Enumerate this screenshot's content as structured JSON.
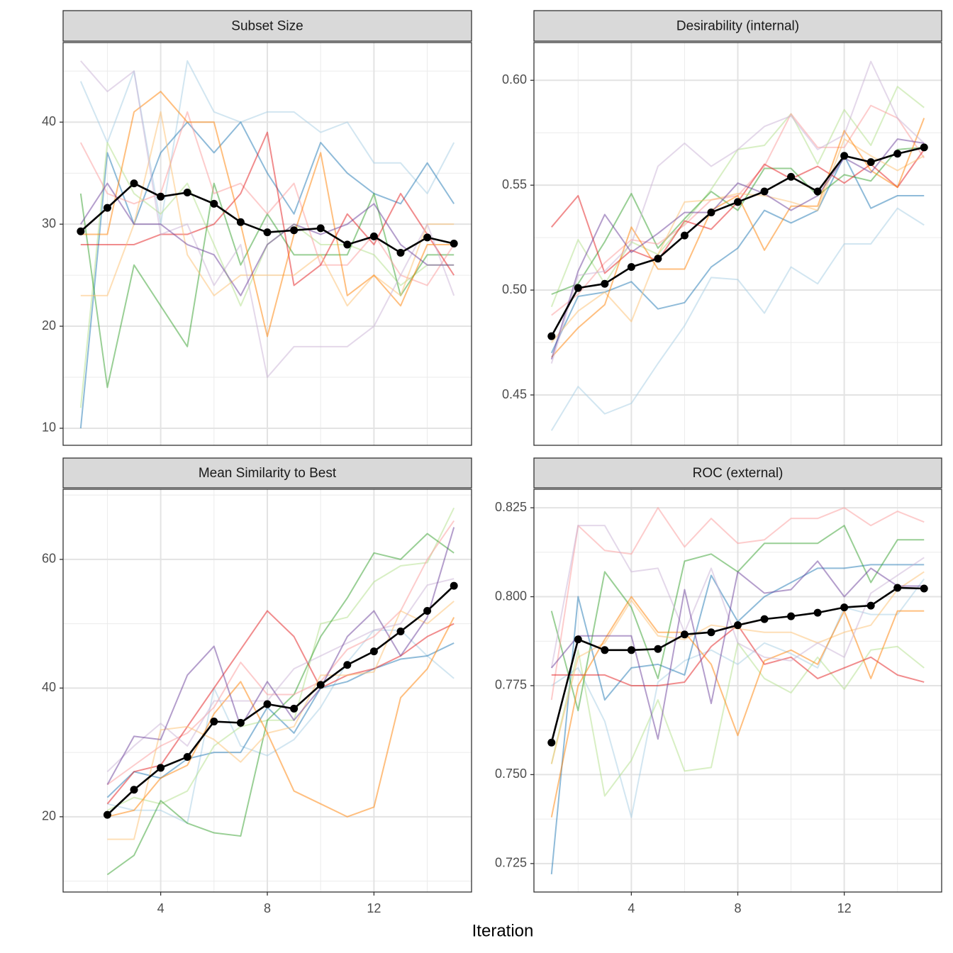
{
  "x_label": "Iteration",
  "chart_data": [
    {
      "type": "line",
      "title": "Subset Size",
      "x": [
        1,
        2,
        3,
        4,
        5,
        6,
        7,
        8,
        9,
        10,
        11,
        12,
        13,
        14,
        15
      ],
      "xlim": [
        0.34,
        15.66
      ],
      "xticks": [
        4,
        8,
        12
      ],
      "x_minor_ticks": [
        2,
        6,
        10,
        14
      ],
      "ylim": [
        8.33,
        47.8
      ],
      "yticks": [
        10,
        20,
        30,
        40
      ],
      "y_minor_ticks": [
        15,
        25,
        35,
        45
      ],
      "grid": true,
      "series": [
        {
          "color": "#A6CEE380",
          "values": [
            44,
            38,
            45,
            30,
            46,
            41,
            40,
            41,
            41,
            39,
            40,
            36,
            36,
            33,
            38
          ]
        },
        {
          "color": "#1F78B480",
          "values": [
            10,
            37,
            30,
            37,
            40,
            37,
            40,
            35,
            31,
            38,
            35,
            33,
            32,
            36,
            32
          ]
        },
        {
          "color": "#B2DF8A80",
          "values": [
            12,
            38,
            33,
            31,
            34,
            28,
            22,
            28,
            30,
            28,
            28,
            27,
            24,
            26,
            26
          ]
        },
        {
          "color": "#33A02C80",
          "values": [
            33,
            14,
            26,
            22,
            18,
            34,
            26,
            31,
            27,
            27,
            27,
            33,
            23,
            27,
            27
          ]
        },
        {
          "color": "#FB9A9980",
          "values": [
            38,
            33,
            32,
            33,
            41,
            33,
            34,
            31,
            34,
            26,
            26,
            29,
            25,
            24,
            28
          ]
        },
        {
          "color": "#E31A1C80",
          "values": [
            28,
            28,
            28,
            29,
            29,
            30,
            33,
            39,
            24,
            26,
            31,
            28,
            33,
            29,
            25
          ]
        },
        {
          "color": "#FDBF6F80",
          "values": [
            23,
            23,
            30,
            41,
            27,
            23,
            25,
            25,
            25,
            27,
            22,
            25,
            23,
            30,
            30
          ]
        },
        {
          "color": "#FF7F0080",
          "values": [
            29,
            29,
            41,
            43,
            40,
            40,
            30,
            19,
            29,
            37,
            23,
            25,
            22,
            28,
            28
          ]
        },
        {
          "color": "#CAB2D680",
          "values": [
            46,
            43,
            45,
            29,
            30,
            24,
            28,
            15,
            18,
            18,
            18,
            20,
            25,
            30,
            23
          ]
        },
        {
          "color": "#6A3D9A80",
          "values": [
            30,
            34,
            30,
            30,
            28,
            27,
            23,
            28,
            30,
            29,
            30,
            32,
            28,
            26,
            26
          ]
        },
        {
          "color": "#000000",
          "markers": true,
          "values": [
            29.3,
            31.6,
            34,
            32.7,
            33.1,
            32,
            30.2,
            29.2,
            29.4,
            29.6,
            28,
            28.8,
            27.2,
            28.7,
            28.1
          ]
        }
      ]
    },
    {
      "type": "line",
      "title": "Desirability (internal)",
      "x": [
        1,
        2,
        3,
        4,
        5,
        6,
        7,
        8,
        9,
        10,
        11,
        12,
        13,
        14,
        15
      ],
      "xlim": [
        0.34,
        15.66
      ],
      "xticks": [
        4,
        8,
        12
      ],
      "x_minor_ticks": [
        2,
        6,
        10,
        14
      ],
      "ylim": [
        0.426,
        0.618
      ],
      "yticks": [
        0.45,
        {
          "value": 0.5,
          "label": "0.50"
        },
        0.55,
        {
          "value": 0.6,
          "label": "0.60"
        }
      ],
      "y_minor_ticks": [
        0.475,
        0.525,
        0.575
      ],
      "grid": true,
      "series": [
        {
          "color": "#A6CEE380",
          "values": [
            0.433,
            0.454,
            0.441,
            0.446,
            0.465,
            0.483,
            0.506,
            0.505,
            0.489,
            0.511,
            0.503,
            0.522,
            0.522,
            0.539,
            0.531
          ]
        },
        {
          "color": "#1F78B480",
          "values": [
            0.47,
            0.497,
            0.499,
            0.504,
            0.491,
            0.494,
            0.511,
            0.52,
            0.538,
            0.532,
            0.538,
            0.564,
            0.539,
            0.545,
            0.545
          ]
        },
        {
          "color": "#B2DF8A80",
          "values": [
            0.492,
            0.524,
            0.503,
            0.523,
            0.517,
            0.532,
            0.548,
            0.567,
            0.569,
            0.584,
            0.56,
            0.586,
            0.569,
            0.597,
            0.587
          ]
        },
        {
          "color": "#33A02C80",
          "values": [
            0.498,
            0.503,
            0.523,
            0.546,
            0.52,
            0.534,
            0.547,
            0.538,
            0.558,
            0.558,
            0.545,
            0.555,
            0.552,
            0.567,
            0.568
          ]
        },
        {
          "color": "#FB9A9980",
          "values": [
            0.488,
            0.498,
            0.513,
            0.524,
            0.522,
            0.531,
            0.543,
            0.545,
            0.559,
            0.584,
            0.568,
            0.568,
            0.588,
            0.582,
            0.563
          ]
        },
        {
          "color": "#E31A1C80",
          "values": [
            0.53,
            0.545,
            0.508,
            0.519,
            0.514,
            0.533,
            0.529,
            0.542,
            0.56,
            0.553,
            0.559,
            0.551,
            0.56,
            0.549,
            0.567
          ]
        },
        {
          "color": "#FDBF6F80",
          "values": [
            0.475,
            0.49,
            0.499,
            0.485,
            0.517,
            0.542,
            0.543,
            0.546,
            0.545,
            0.542,
            0.538,
            0.572,
            0.564,
            0.557,
            0.564
          ]
        },
        {
          "color": "#FF7F0080",
          "values": [
            0.468,
            0.482,
            0.493,
            0.53,
            0.51,
            0.51,
            0.538,
            0.545,
            0.519,
            0.54,
            0.54,
            0.576,
            0.557,
            0.549,
            0.582
          ]
        },
        {
          "color": "#CAB2D680",
          "values": [
            0.465,
            0.507,
            0.509,
            0.522,
            0.559,
            0.57,
            0.559,
            0.567,
            0.578,
            0.583,
            0.567,
            0.574,
            0.609,
            0.582,
            0.57
          ]
        },
        {
          "color": "#6A3D9A80",
          "values": [
            0.467,
            0.509,
            0.536,
            0.518,
            0.527,
            0.537,
            0.537,
            0.551,
            0.546,
            0.538,
            0.545,
            0.563,
            0.556,
            0.572,
            0.57
          ]
        },
        {
          "color": "#000000",
          "markers": true,
          "values": [
            0.478,
            0.501,
            0.503,
            0.511,
            0.515,
            0.526,
            0.537,
            0.542,
            0.547,
            0.554,
            0.547,
            0.564,
            0.561,
            0.565,
            0.568
          ]
        }
      ]
    },
    {
      "type": "line",
      "title": "Mean Similarity to Best",
      "x": [
        1,
        2,
        3,
        4,
        5,
        6,
        7,
        8,
        9,
        10,
        11,
        12,
        13,
        14,
        15
      ],
      "xlim": [
        0.34,
        15.66
      ],
      "xticks": [
        4,
        8,
        12
      ],
      "x_minor_ticks": [
        2,
        6,
        10,
        14
      ],
      "ylim": [
        8.3,
        70.9
      ],
      "yticks": [
        20,
        40,
        60
      ],
      "y_minor_ticks": [
        10,
        30,
        50,
        70
      ],
      "grid": true,
      "series": [
        {
          "color": "#A6CEE380",
          "values": [
            null,
            22,
            21,
            21,
            19,
            40,
            31,
            29.5,
            32,
            37,
            44,
            49,
            49,
            45,
            41.5
          ]
        },
        {
          "color": "#1F78B480",
          "values": [
            null,
            23,
            27,
            26,
            29,
            30,
            30,
            37,
            33,
            40,
            41,
            43,
            44.5,
            45,
            47
          ]
        },
        {
          "color": "#B2DF8A80",
          "values": [
            null,
            21,
            23,
            22,
            24,
            31,
            34,
            35,
            35,
            50,
            51,
            56.5,
            59,
            59.5,
            68
          ]
        },
        {
          "color": "#33A02C80",
          "values": [
            null,
            11,
            14,
            22.5,
            19,
            17.5,
            17,
            35,
            39,
            48,
            54,
            61,
            60,
            64,
            61
          ]
        },
        {
          "color": "#FB9A9980",
          "values": [
            null,
            25,
            28,
            31,
            33,
            37,
            44,
            39,
            39,
            41,
            46,
            48,
            52,
            60,
            66
          ]
        },
        {
          "color": "#E31A1C80",
          "values": [
            null,
            22,
            27,
            28,
            34,
            40,
            46,
            52,
            48,
            40,
            42,
            43,
            45,
            48,
            50
          ]
        },
        {
          "color": "#FDBF6F80",
          "values": [
            null,
            16.5,
            16.5,
            33.5,
            34,
            32,
            28.5,
            33,
            34,
            42,
            42,
            42.5,
            52,
            50,
            53.5
          ]
        },
        {
          "color": "#FF7F0080",
          "values": [
            null,
            20,
            21,
            26,
            28,
            36,
            41,
            33,
            24,
            22,
            20,
            21.5,
            38.5,
            43,
            51
          ]
        },
        {
          "color": "#CAB2D680",
          "values": [
            null,
            27,
            31,
            34.5,
            31,
            38,
            38,
            38,
            43,
            45,
            47,
            49,
            50,
            56,
            57
          ]
        },
        {
          "color": "#6A3D9A80",
          "values": [
            null,
            25,
            32.5,
            32,
            42,
            46.5,
            34,
            41,
            35,
            40,
            48,
            52,
            45,
            51,
            65
          ]
        },
        {
          "color": "#000000",
          "markers": true,
          "values": [
            null,
            20.3,
            24.2,
            27.6,
            29.3,
            34.8,
            34.6,
            37.5,
            36.8,
            40.5,
            43.6,
            45.7,
            48.8,
            52,
            55.9
          ]
        }
      ]
    },
    {
      "type": "line",
      "title": "ROC (external)",
      "x": [
        1,
        2,
        3,
        4,
        5,
        6,
        7,
        8,
        9,
        10,
        11,
        12,
        13,
        14,
        15
      ],
      "xlim": [
        0.34,
        15.66
      ],
      "xticks": [
        4,
        8,
        12
      ],
      "x_minor_ticks": [
        2,
        6,
        10,
        14
      ],
      "ylim": [
        0.717,
        0.8302
      ],
      "yticks": [
        0.725,
        {
          "value": 0.75,
          "label": "0.750"
        },
        0.775,
        {
          "value": 0.8,
          "label": "0.800"
        },
        0.825
      ],
      "y_minor_ticks": [
        0.7375,
        0.7625,
        0.7875,
        0.8125
      ],
      "grid": true,
      "series": [
        {
          "color": "#A6CEE380",
          "values": [
            0.775,
            0.78,
            0.765,
            0.738,
            0.776,
            0.782,
            0.785,
            0.781,
            0.787,
            0.784,
            0.78,
            0.797,
            0.795,
            0.795,
            0.805
          ]
        },
        {
          "color": "#1F78B480",
          "values": [
            0.722,
            0.8,
            0.771,
            0.78,
            0.781,
            0.778,
            0.806,
            0.793,
            0.8,
            0.804,
            0.808,
            0.808,
            0.809,
            0.809,
            0.809
          ]
        },
        {
          "color": "#B2DF8A80",
          "values": [
            0.753,
            0.785,
            0.744,
            0.754,
            0.771,
            0.751,
            0.752,
            0.787,
            0.777,
            0.773,
            0.783,
            0.774,
            0.785,
            0.786,
            0.78
          ]
        },
        {
          "color": "#33A02C80",
          "values": [
            0.796,
            0.768,
            0.807,
            0.797,
            0.777,
            0.81,
            0.812,
            0.807,
            0.815,
            0.815,
            0.815,
            0.82,
            0.804,
            0.816,
            0.816
          ]
        },
        {
          "color": "#FB9A9980",
          "values": [
            0.771,
            0.82,
            0.813,
            0.812,
            0.825,
            0.814,
            0.822,
            0.815,
            0.816,
            0.822,
            0.822,
            0.825,
            0.82,
            0.824,
            0.821
          ]
        },
        {
          "color": "#E31A1C80",
          "values": [
            0.778,
            0.778,
            0.778,
            0.775,
            0.775,
            0.776,
            0.786,
            0.792,
            0.781,
            0.783,
            0.777,
            0.78,
            0.783,
            0.778,
            0.776
          ]
        },
        {
          "color": "#FDBF6F80",
          "values": [
            0.753,
            0.783,
            0.787,
            0.799,
            0.789,
            0.788,
            0.792,
            0.791,
            0.79,
            0.79,
            0.787,
            0.79,
            0.792,
            0.802,
            0.807
          ]
        },
        {
          "color": "#FF7F0080",
          "values": [
            0.738,
            0.775,
            0.788,
            0.8,
            0.79,
            0.79,
            0.781,
            0.761,
            0.782,
            0.785,
            0.781,
            0.796,
            0.777,
            0.796,
            0.796
          ]
        },
        {
          "color": "#CAB2D680",
          "values": [
            0.78,
            0.82,
            0.82,
            0.807,
            0.808,
            0.79,
            0.808,
            0.787,
            0.783,
            0.782,
            0.787,
            0.783,
            0.801,
            0.806,
            0.811
          ]
        },
        {
          "color": "#6A3D9A80",
          "values": [
            0.78,
            0.789,
            0.789,
            0.789,
            0.76,
            0.802,
            0.77,
            0.807,
            0.801,
            0.802,
            0.81,
            0.8,
            0.808,
            0.803,
            0.803
          ]
        },
        {
          "color": "#000000",
          "markers": true,
          "values": [
            0.759,
            0.788,
            0.785,
            0.785,
            0.7853,
            0.7894,
            0.79,
            0.792,
            0.7937,
            0.7945,
            0.7955,
            0.797,
            0.7975,
            0.8025,
            0.8023
          ]
        }
      ]
    }
  ]
}
